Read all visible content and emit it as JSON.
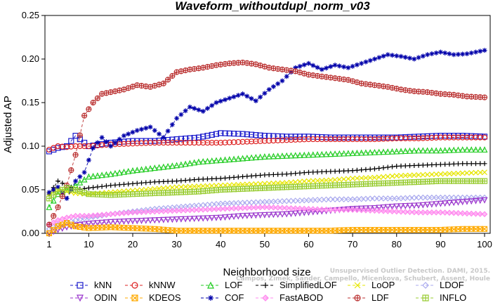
{
  "chart_data": {
    "type": "line",
    "title": "Waveform_withoutdupl_norm_v03",
    "xlabel": "Neighborhood size",
    "ylabel": "Adjusted AP",
    "xlim": [
      0,
      100
    ],
    "ylim": [
      0,
      0.25
    ],
    "xticks": [
      1,
      10,
      20,
      30,
      40,
      50,
      60,
      70,
      80,
      90,
      100
    ],
    "yticks": [
      "0.00",
      "0.05",
      "0.10",
      "0.15",
      "0.20",
      "0.25"
    ],
    "grid": false,
    "legend_position": "bottom",
    "credit": "Campos, Zimek, Sander, Campello, Micenkova, Schubert, Assent, Houle",
    "credit2": "Unsupervised Outlier Detection. DAMI, 2015.",
    "series": [
      {
        "name": "kNN",
        "color": "#1a1acc",
        "marker": "square",
        "dash": "4,3",
        "x": [
          1,
          3,
          5,
          7,
          10,
          15,
          20,
          25,
          30,
          35,
          40,
          45,
          50,
          55,
          60,
          65,
          70,
          75,
          80,
          85,
          90,
          95,
          100
        ],
        "y": [
          0.094,
          0.098,
          0.1,
          0.112,
          0.1,
          0.104,
          0.106,
          0.106,
          0.108,
          0.11,
          0.115,
          0.114,
          0.112,
          0.111,
          0.111,
          0.11,
          0.11,
          0.11,
          0.11,
          0.111,
          0.112,
          0.112,
          0.111
        ]
      },
      {
        "name": "kNNW",
        "color": "#dd2222",
        "marker": "circle",
        "dash": "4,3",
        "x": [
          1,
          3,
          5,
          7,
          10,
          15,
          20,
          25,
          30,
          35,
          40,
          45,
          50,
          55,
          60,
          65,
          70,
          75,
          80,
          85,
          90,
          95,
          100
        ],
        "y": [
          0.096,
          0.1,
          0.099,
          0.1,
          0.1,
          0.102,
          0.103,
          0.104,
          0.104,
          0.104,
          0.104,
          0.105,
          0.106,
          0.107,
          0.108,
          0.108,
          0.108,
          0.108,
          0.109,
          0.109,
          0.11,
          0.11,
          0.11
        ]
      },
      {
        "name": "LOF",
        "color": "#22cc22",
        "marker": "triangle-up",
        "dash": "4,3",
        "x": [
          1,
          3,
          5,
          7,
          10,
          15,
          20,
          25,
          30,
          35,
          40,
          45,
          50,
          55,
          60,
          65,
          70,
          75,
          80,
          85,
          90,
          95,
          100
        ],
        "y": [
          0.03,
          0.045,
          0.05,
          0.055,
          0.065,
          0.068,
          0.072,
          0.075,
          0.078,
          0.082,
          0.084,
          0.086,
          0.088,
          0.089,
          0.09,
          0.091,
          0.092,
          0.093,
          0.094,
          0.095,
          0.095,
          0.096,
          0.096
        ]
      },
      {
        "name": "SimplifiedLOF",
        "color": "#000000",
        "marker": "plus",
        "dash": "4,3",
        "x": [
          1,
          3,
          5,
          7,
          10,
          15,
          20,
          25,
          30,
          35,
          40,
          45,
          50,
          55,
          60,
          65,
          70,
          75,
          80,
          85,
          90,
          95,
          100
        ],
        "y": [
          0.045,
          0.06,
          0.055,
          0.05,
          0.052,
          0.055,
          0.057,
          0.059,
          0.06,
          0.062,
          0.063,
          0.065,
          0.067,
          0.068,
          0.07,
          0.071,
          0.072,
          0.074,
          0.077,
          0.078,
          0.079,
          0.08,
          0.08
        ]
      },
      {
        "name": "LoOP",
        "color": "#e6e600",
        "marker": "x",
        "dash": "4,3",
        "x": [
          1,
          3,
          5,
          7,
          10,
          15,
          20,
          25,
          30,
          35,
          40,
          45,
          50,
          55,
          60,
          65,
          70,
          75,
          80,
          85,
          90,
          95,
          100
        ],
        "y": [
          0.045,
          0.05,
          0.048,
          0.046,
          0.045,
          0.047,
          0.049,
          0.051,
          0.053,
          0.054,
          0.055,
          0.056,
          0.057,
          0.058,
          0.06,
          0.061,
          0.063,
          0.064,
          0.066,
          0.067,
          0.068,
          0.069,
          0.07
        ]
      },
      {
        "name": "LDOF",
        "color": "#aaaaee",
        "marker": "diamond",
        "dash": "4,3",
        "x": [
          1,
          3,
          5,
          7,
          10,
          15,
          20,
          25,
          30,
          35,
          40,
          45,
          50,
          55,
          60,
          65,
          70,
          75,
          80,
          85,
          90,
          95,
          100
        ],
        "y": [
          0.005,
          0.01,
          0.012,
          0.015,
          0.018,
          0.022,
          0.025,
          0.028,
          0.03,
          0.032,
          0.034,
          0.035,
          0.036,
          0.037,
          0.038,
          0.039,
          0.039,
          0.04,
          0.04,
          0.041,
          0.041,
          0.041,
          0.041
        ]
      },
      {
        "name": "ODIN",
        "color": "#9933cc",
        "marker": "triangle-down",
        "dash": "4,3",
        "x": [
          1,
          3,
          5,
          7,
          10,
          15,
          20,
          25,
          30,
          35,
          40,
          45,
          50,
          55,
          60,
          65,
          70,
          75,
          80,
          85,
          90,
          95,
          100
        ],
        "y": [
          0.0,
          0.004,
          0.007,
          0.009,
          0.011,
          0.013,
          0.014,
          0.015,
          0.016,
          0.017,
          0.018,
          0.02,
          0.021,
          0.022,
          0.024,
          0.026,
          0.028,
          0.029,
          0.031,
          0.032,
          0.034,
          0.036,
          0.038
        ]
      },
      {
        "name": "KDEOS",
        "color": "#ffaa00",
        "marker": "square-x",
        "dash": "4,3",
        "x": [
          1,
          3,
          5,
          7,
          10,
          15,
          20,
          25,
          30,
          35,
          40,
          45,
          50,
          55,
          60,
          65,
          70,
          75,
          80,
          85,
          90,
          95,
          100
        ],
        "y": [
          0.0,
          0.008,
          0.012,
          0.008,
          0.006,
          0.007,
          0.006,
          0.005,
          0.003,
          0.003,
          0.003,
          0.003,
          0.003,
          0.003,
          0.003,
          0.003,
          0.004,
          0.004,
          0.004,
          0.004,
          0.004,
          0.005,
          0.005
        ]
      },
      {
        "name": "COF",
        "color": "#0000aa",
        "marker": "asterisk",
        "dash": "4,3",
        "x": [
          1,
          3,
          5,
          7,
          9,
          11,
          13,
          15,
          18,
          21,
          24,
          27,
          30,
          33,
          36,
          39,
          42,
          45,
          48,
          51,
          54,
          57,
          60,
          63,
          66,
          69,
          72,
          75,
          78,
          81,
          84,
          87,
          90,
          93,
          96,
          100
        ],
        "y": [
          0.047,
          0.053,
          0.04,
          0.06,
          0.07,
          0.098,
          0.11,
          0.1,
          0.112,
          0.118,
          0.122,
          0.11,
          0.132,
          0.145,
          0.14,
          0.15,
          0.155,
          0.16,
          0.152,
          0.165,
          0.175,
          0.19,
          0.195,
          0.188,
          0.193,
          0.19,
          0.195,
          0.2,
          0.205,
          0.203,
          0.2,
          0.205,
          0.208,
          0.205,
          0.206,
          0.21
        ]
      },
      {
        "name": "FastABOD",
        "color": "#ff88ee",
        "marker": "diamond-filled",
        "dash": "4,3",
        "x": [
          1,
          3,
          5,
          7,
          10,
          15,
          20,
          25,
          30,
          35,
          40,
          45,
          50,
          55,
          60,
          65,
          70,
          75,
          80,
          85,
          90,
          95,
          100
        ],
        "y": [
          0.01,
          0.015,
          0.018,
          0.02,
          0.02,
          0.022,
          0.024,
          0.025,
          0.026,
          0.027,
          0.028,
          0.029,
          0.03,
          0.029,
          0.028,
          0.027,
          0.027,
          0.026,
          0.025,
          0.024,
          0.024,
          0.023,
          0.022
        ]
      },
      {
        "name": "LDF",
        "color": "#bb3333",
        "marker": "circle-plus",
        "dash": "4,3",
        "x": [
          1,
          3,
          5,
          7,
          9,
          11,
          13,
          15,
          18,
          21,
          24,
          27,
          30,
          33,
          36,
          39,
          42,
          45,
          48,
          51,
          54,
          57,
          60,
          63,
          66,
          69,
          72,
          75,
          78,
          81,
          84,
          87,
          90,
          93,
          96,
          100
        ],
        "y": [
          0.01,
          0.03,
          0.055,
          0.09,
          0.135,
          0.15,
          0.16,
          0.162,
          0.165,
          0.17,
          0.168,
          0.172,
          0.185,
          0.188,
          0.19,
          0.193,
          0.195,
          0.196,
          0.194,
          0.19,
          0.188,
          0.186,
          0.182,
          0.18,
          0.178,
          0.176,
          0.172,
          0.17,
          0.168,
          0.165,
          0.163,
          0.162,
          0.16,
          0.159,
          0.157,
          0.156
        ]
      },
      {
        "name": "INFLO",
        "color": "#99cc33",
        "marker": "square-cross",
        "dash": "4,3",
        "x": [
          1,
          3,
          5,
          7,
          10,
          15,
          20,
          25,
          30,
          35,
          40,
          45,
          50,
          55,
          60,
          65,
          70,
          75,
          80,
          85,
          90,
          95,
          100
        ],
        "y": [
          0.04,
          0.048,
          0.052,
          0.05,
          0.045,
          0.044,
          0.045,
          0.046,
          0.047,
          0.048,
          0.05,
          0.051,
          0.052,
          0.053,
          0.054,
          0.055,
          0.056,
          0.057,
          0.058,
          0.059,
          0.06,
          0.06,
          0.06
        ]
      }
    ]
  }
}
